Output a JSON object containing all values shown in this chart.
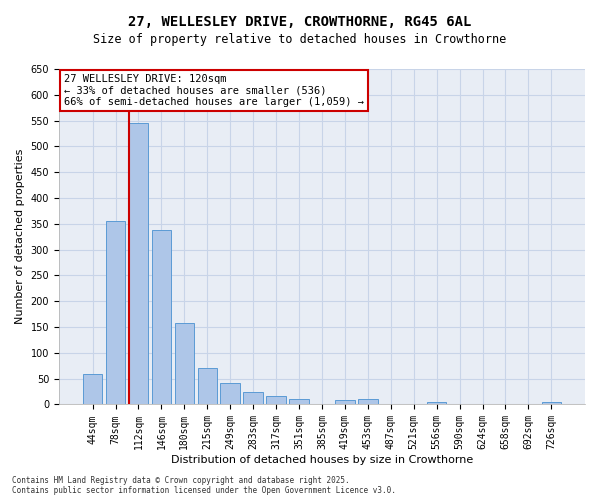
{
  "title_line1": "27, WELLESLEY DRIVE, CROWTHORNE, RG45 6AL",
  "title_line2": "Size of property relative to detached houses in Crowthorne",
  "xlabel": "Distribution of detached houses by size in Crowthorne",
  "ylabel": "Number of detached properties",
  "footer_line1": "Contains HM Land Registry data © Crown copyright and database right 2025.",
  "footer_line2": "Contains public sector information licensed under the Open Government Licence v3.0.",
  "annotation_line1": "27 WELLESLEY DRIVE: 120sqm",
  "annotation_line2": "← 33% of detached houses are smaller (536)",
  "annotation_line3": "66% of semi-detached houses are larger (1,059) →",
  "categories": [
    "44sqm",
    "78sqm",
    "112sqm",
    "146sqm",
    "180sqm",
    "215sqm",
    "249sqm",
    "283sqm",
    "317sqm",
    "351sqm",
    "385sqm",
    "419sqm",
    "453sqm",
    "487sqm",
    "521sqm",
    "556sqm",
    "590sqm",
    "624sqm",
    "658sqm",
    "692sqm",
    "726sqm"
  ],
  "values": [
    60,
    355,
    545,
    338,
    158,
    70,
    42,
    25,
    16,
    10,
    0,
    8,
    10,
    0,
    0,
    5,
    0,
    0,
    0,
    0,
    5
  ],
  "bar_color": "#aec6e8",
  "bar_edge_color": "#5b9bd5",
  "highlight_index": 2,
  "highlight_line_color": "#cc0000",
  "background_color": "#ffffff",
  "plot_bg_color": "#e8edf5",
  "grid_color": "#c8d4e8",
  "ylim": [
    0,
    650
  ],
  "yticks": [
    0,
    50,
    100,
    150,
    200,
    250,
    300,
    350,
    400,
    450,
    500,
    550,
    600,
    650
  ],
  "annotation_box_color": "#cc0000",
  "title_fontsize": 10,
  "subtitle_fontsize": 8.5,
  "tick_fontsize": 7,
  "label_fontsize": 8,
  "footer_fontsize": 5.5
}
